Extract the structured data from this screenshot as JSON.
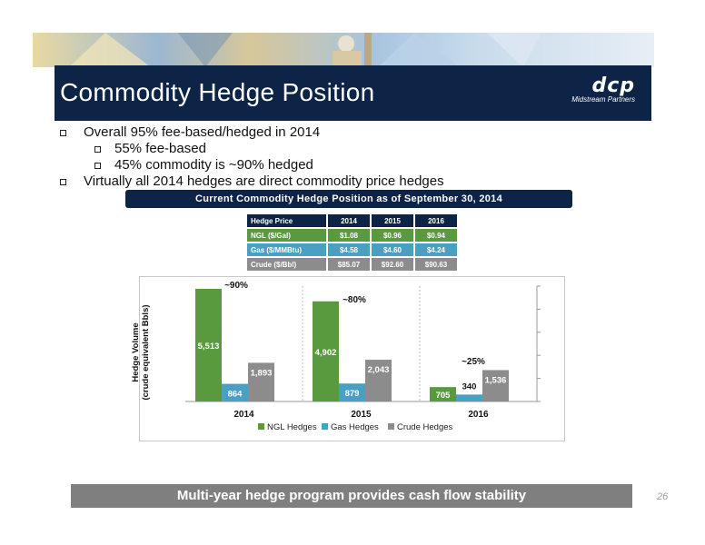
{
  "slide": {
    "title": "Commodity Hedge Position",
    "logo_mark": "dcp",
    "logo_sub": "Midstream Partners",
    "page_number": "26",
    "footer": "Multi-year hedge program provides cash flow stability"
  },
  "bullets": [
    {
      "level": 1,
      "text": "Overall 95% fee-based/hedged in 2014"
    },
    {
      "level": 2,
      "text": "55% fee-based"
    },
    {
      "level": 2,
      "text": "45% commodity is ~90% hedged"
    },
    {
      "level": 1,
      "text": "Virtually all 2014 hedges are direct commodity price hedges"
    }
  ],
  "section_header": "Current Commodity Hedge Position as of September 30, 2014",
  "hedge_table": {
    "headers": [
      "Hedge Price",
      "2014",
      "2015",
      "2016"
    ],
    "rows": [
      {
        "label": "NGL ($/Gal)",
        "values": [
          "$1.08",
          "$0.96",
          "$0.94"
        ]
      },
      {
        "label": "Gas ($/MMBtu)",
        "values": [
          "$4.58",
          "$4.60",
          "$4.24"
        ]
      },
      {
        "label": "Crude ($/Bbl)",
        "values": [
          "$85.07",
          "$92.60",
          "$90.63"
        ]
      }
    ]
  },
  "colors": {
    "navy": "#0d2447",
    "ngl": "#5a9a3e",
    "gas": "#4aa0c3",
    "crude": "#8c8c8c"
  },
  "chart_data": {
    "type": "bar",
    "categories": [
      "2014",
      "2015",
      "2016"
    ],
    "ylabel": "Hedge Volume\n(crude equivalent Bbls)",
    "ylim": [
      0,
      6000
    ],
    "series": [
      {
        "name": "NGL Hedges",
        "values": [
          5513,
          4902,
          705
        ],
        "labels": [
          "5,513",
          "4,902",
          "705"
        ]
      },
      {
        "name": "Gas Hedges",
        "values": [
          864,
          879,
          340
        ],
        "labels": [
          "864",
          "879",
          "340"
        ]
      },
      {
        "name": "Crude Hedges",
        "values": [
          1893,
          2043,
          1536
        ],
        "labels": [
          "1,893",
          "2,043",
          "1,536"
        ]
      }
    ],
    "annotations": [
      "~90%",
      "~80%",
      "~25%"
    ],
    "legend": "bottom"
  }
}
